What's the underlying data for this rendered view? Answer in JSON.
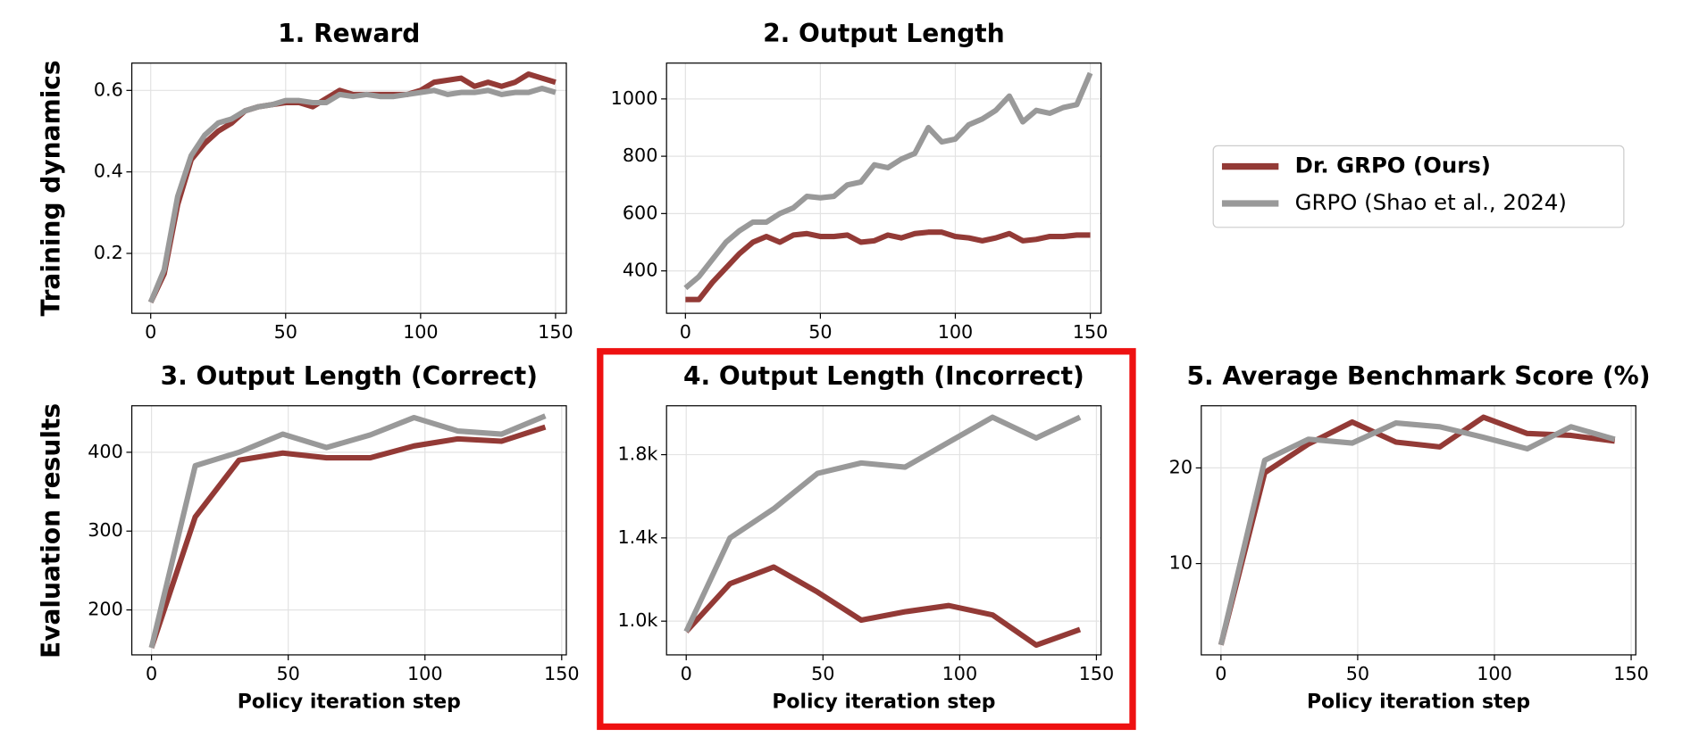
{
  "row_labels": [
    "Training dynamics",
    "Evaluation results"
  ],
  "chart_data": [
    {
      "type": "line",
      "title": "1. Reward",
      "xlim": [
        -7,
        154
      ],
      "xticks": [
        0,
        50,
        100,
        150
      ],
      "ylim": [
        0.053,
        0.667
      ],
      "yticks": [
        0.2,
        0.4,
        0.6
      ],
      "grid": true,
      "x": [
        0,
        5,
        10,
        15,
        20,
        25,
        30,
        35,
        40,
        45,
        50,
        55,
        60,
        65,
        70,
        75,
        80,
        85,
        90,
        95,
        100,
        105,
        110,
        115,
        120,
        125,
        130,
        135,
        140,
        145,
        150
      ],
      "series": [
        {
          "name": "Dr. GRPO (Ours)",
          "color": "#933a36",
          "values": [
            0.08,
            0.15,
            0.32,
            0.43,
            0.47,
            0.5,
            0.52,
            0.55,
            0.56,
            0.565,
            0.57,
            0.57,
            0.56,
            0.58,
            0.6,
            0.59,
            0.59,
            0.59,
            0.59,
            0.59,
            0.6,
            0.62,
            0.625,
            0.63,
            0.61,
            0.62,
            0.61,
            0.62,
            0.64,
            0.63,
            0.62
          ]
        },
        {
          "name": "GRPO (Shao et al., 2024)",
          "color": "#999999",
          "values": [
            0.08,
            0.16,
            0.34,
            0.44,
            0.49,
            0.52,
            0.53,
            0.55,
            0.56,
            0.565,
            0.575,
            0.575,
            0.57,
            0.57,
            0.59,
            0.585,
            0.59,
            0.585,
            0.585,
            0.59,
            0.595,
            0.6,
            0.59,
            0.595,
            0.595,
            0.6,
            0.59,
            0.595,
            0.595,
            0.605,
            0.595
          ]
        }
      ]
    },
    {
      "type": "line",
      "title": "2. Output Length",
      "xlim": [
        -7,
        154
      ],
      "xticks": [
        0,
        50,
        100,
        150
      ],
      "ylim": [
        252,
        1125
      ],
      "yticks": [
        400,
        600,
        800,
        1000
      ],
      "grid": true,
      "x": [
        0,
        5,
        10,
        15,
        20,
        25,
        30,
        35,
        40,
        45,
        50,
        55,
        60,
        65,
        70,
        75,
        80,
        85,
        90,
        95,
        100,
        105,
        110,
        115,
        120,
        125,
        130,
        135,
        140,
        145,
        150
      ],
      "series": [
        {
          "name": "Dr. GRPO (Ours)",
          "color": "#933a36",
          "values": [
            300,
            300,
            360,
            410,
            460,
            500,
            520,
            500,
            525,
            530,
            520,
            520,
            525,
            500,
            505,
            525,
            515,
            530,
            535,
            535,
            520,
            515,
            505,
            515,
            530,
            505,
            510,
            520,
            520,
            525,
            525
          ]
        },
        {
          "name": "GRPO (Shao et al., 2024)",
          "color": "#999999",
          "values": [
            340,
            380,
            440,
            500,
            540,
            570,
            570,
            600,
            620,
            660,
            655,
            660,
            700,
            710,
            770,
            760,
            790,
            810,
            900,
            850,
            860,
            910,
            930,
            960,
            1010,
            920,
            960,
            950,
            970,
            980,
            1090
          ]
        }
      ]
    },
    {
      "type": "line",
      "title": "3. Output Length (Correct)",
      "xlabel": "Policy iteration step",
      "xlim": [
        -7.2,
        151.7
      ],
      "xticks": [
        0,
        50,
        100,
        150
      ],
      "ylim": [
        143,
        459
      ],
      "yticks": [
        200,
        300,
        400
      ],
      "grid": true,
      "x": [
        0,
        16,
        32,
        48,
        64,
        80,
        96,
        112,
        128,
        144
      ],
      "series": [
        {
          "name": "Dr. GRPO (Ours)",
          "color": "#933a36",
          "values": [
            152,
            318,
            390,
            399,
            393,
            393,
            408,
            417,
            414,
            432
          ]
        },
        {
          "name": "GRPO (Shao et al., 2024)",
          "color": "#999999",
          "values": [
            152,
            383,
            400,
            423,
            406,
            422,
            444,
            427,
            423,
            446
          ]
        }
      ]
    },
    {
      "type": "line",
      "title": "4. Output Length (Incorrect)",
      "xlabel": "Policy iteration step",
      "xlim": [
        -7.2,
        151.7
      ],
      "xticks": [
        0,
        50,
        100,
        150
      ],
      "ylim": [
        838,
        2035
      ],
      "yticks": [
        {
          "value": 1000,
          "label": "1.0k"
        },
        {
          "value": 1400,
          "label": "1.4k"
        },
        {
          "value": 1800,
          "label": "1.8k"
        }
      ],
      "grid": true,
      "x": [
        0,
        16,
        32,
        48,
        64,
        80,
        96,
        112,
        128,
        144
      ],
      "series": [
        {
          "name": "Dr. GRPO (Ours)",
          "color": "#933a36",
          "values": [
            950,
            1180,
            1260,
            1140,
            1005,
            1045,
            1075,
            1030,
            885,
            960
          ]
        },
        {
          "name": "GRPO (Shao et al., 2024)",
          "color": "#999999",
          "values": [
            950,
            1400,
            1540,
            1710,
            1760,
            1740,
            1860,
            1980,
            1880,
            1980
          ]
        }
      ]
    },
    {
      "type": "line",
      "title": "5. Average Benchmark Score (%)",
      "xlabel": "Policy iteration step",
      "xlim": [
        -7.2,
        151.7
      ],
      "xticks": [
        0,
        50,
        100,
        150
      ],
      "ylim": [
        0.45,
        26.5
      ],
      "yticks": [
        10,
        20
      ],
      "grid": true,
      "x": [
        0,
        16,
        32,
        48,
        64,
        80,
        96,
        112,
        128,
        144
      ],
      "series": [
        {
          "name": "Dr. GRPO (Ours)",
          "color": "#933a36",
          "values": [
            1.5,
            19.5,
            22.5,
            24.8,
            22.7,
            22.2,
            25.3,
            23.6,
            23.4,
            22.8
          ]
        },
        {
          "name": "GRPO (Shao et al., 2024)",
          "color": "#999999",
          "values": [
            1.5,
            20.8,
            23.0,
            22.6,
            24.7,
            24.3,
            23.2,
            22.0,
            24.3,
            23.0
          ]
        }
      ]
    }
  ]
}
